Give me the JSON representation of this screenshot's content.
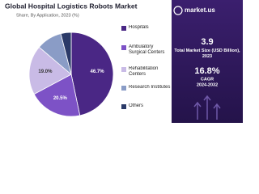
{
  "chart_data": {
    "type": "pie",
    "title": "Global Hospital Logistics Robots Market",
    "subtitle": "Share, By Application, 2023 (%)",
    "categories": [
      "Hospitals",
      "Ambulatory Surgical Centers",
      "Rehabilitation Centers",
      "Research Institutes",
      "Others"
    ],
    "values": [
      46.7,
      20.5,
      19.0,
      9.8,
      4.0
    ],
    "value_labels": [
      "46.7%",
      "20.5%",
      "19.0%",
      null,
      null
    ],
    "colors": [
      "#4a2785",
      "#7d52c6",
      "#c9bbe6",
      "#8a9cc6",
      "#2b3a68"
    ]
  },
  "panel": {
    "logo": "market.us",
    "market_size": "3.9",
    "market_size_label": "Total Market Size (USD Billion), 2023",
    "cagr": "16.8%",
    "cagr_label": "CAGR",
    "cagr_period": "2024-2032"
  }
}
